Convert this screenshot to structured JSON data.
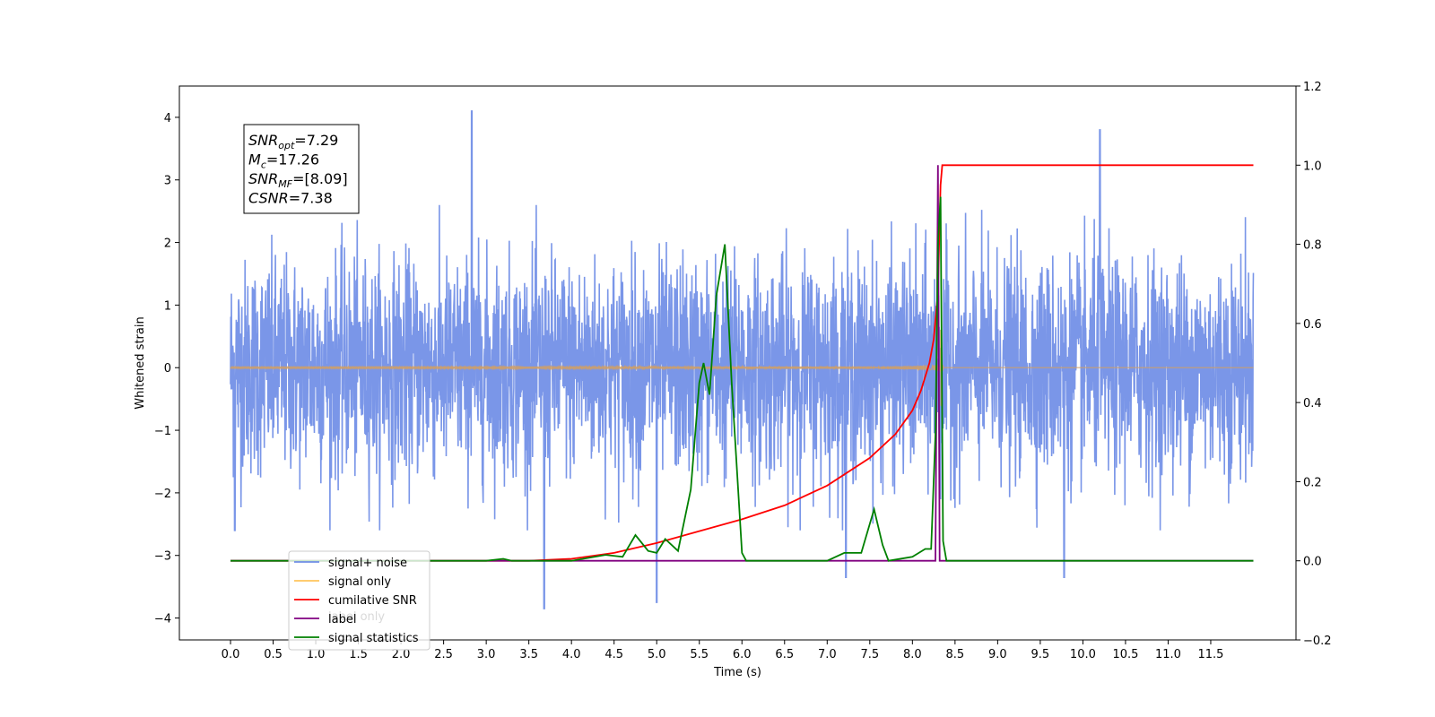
{
  "chart_data": {
    "type": "line",
    "title": "",
    "xlabel": "Time (s)",
    "ylabel": "Whitened strain",
    "xlim": [
      -0.6,
      12.5
    ],
    "ylim_left": [
      -4.35,
      4.5
    ],
    "ylim_right": [
      -0.2,
      1.2
    ],
    "x_ticks": [
      "0.0",
      "0.5",
      "1.0",
      "1.5",
      "2.0",
      "2.5",
      "3.0",
      "3.5",
      "4.0",
      "4.5",
      "5.0",
      "5.5",
      "6.0",
      "6.5",
      "7.0",
      "7.5",
      "8.0",
      "8.5",
      "9.0",
      "9.5",
      "10.0",
      "10.5",
      "11.0",
      "11.5"
    ],
    "y_ticks_left": [
      "4",
      "3",
      "2",
      "1",
      "0",
      "−1",
      "−2",
      "−3",
      "−4"
    ],
    "y_ticks_right": [
      "1.2",
      "1.0",
      "0.8",
      "0.6",
      "0.4",
      "0.2",
      "0.0",
      "−0.2"
    ],
    "grid": false,
    "legend_position": "lower-left",
    "legend": [
      {
        "label": "signal+ noise",
        "color": "#6f8de6"
      },
      {
        "label": "signal only",
        "color": "#ffc55c"
      },
      {
        "label": "cumilative SNR",
        "color": "#ff0000"
      },
      {
        "label": "label",
        "color": "#800080"
      },
      {
        "label": "signal statistics",
        "color": "#008000"
      }
    ],
    "hidden_legend_label": "label only",
    "annotation": {
      "lines": [
        {
          "var": "SNR",
          "sub": "opt",
          "value": "=7.29"
        },
        {
          "var": "M",
          "sub": "c",
          "value": "=17.26"
        },
        {
          "var": "SNR",
          "sub": "MF",
          "value": "=[8.09]"
        },
        {
          "var": "CSNR",
          "sub": "",
          "value": "=7.38"
        }
      ]
    },
    "series": [
      {
        "name": "signal+ noise",
        "axis": "left",
        "color": "#6f8de6",
        "description_points": {
          "x": [
            0.0,
            12.0
          ],
          "envelope": 1.8,
          "spikes": [
            [
              2.83,
              4.1
            ],
            [
              10.2,
              3.8
            ],
            [
              3.68,
              -3.85
            ],
            [
              5.0,
              -3.75
            ],
            [
              0.05,
              -2.6
            ],
            [
              9.78,
              -3.35
            ],
            [
              7.22,
              -3.35
            ]
          ]
        }
      },
      {
        "name": "signal only",
        "axis": "left",
        "color": "#d4a060",
        "chirp": {
          "t_merge": 8.33,
          "amp_max": 1.1
        }
      },
      {
        "name": "cumilative SNR",
        "axis": "right",
        "color": "#ff0000",
        "x": [
          0.0,
          3.5,
          4.0,
          4.5,
          5.0,
          5.5,
          6.0,
          6.5,
          7.0,
          7.5,
          7.8,
          8.0,
          8.1,
          8.2,
          8.25,
          8.3,
          8.33,
          8.35,
          12.0
        ],
        "y": [
          0.0,
          0.0,
          0.005,
          0.02,
          0.045,
          0.075,
          0.105,
          0.14,
          0.19,
          0.26,
          0.32,
          0.38,
          0.43,
          0.5,
          0.56,
          0.68,
          0.95,
          1.0,
          1.0
        ]
      },
      {
        "name": "label",
        "axis": "right",
        "color": "#800080",
        "x": [
          0.0,
          8.25,
          8.27,
          8.3,
          8.32,
          12.0
        ],
        "y": [
          0.0,
          0.0,
          0.0,
          1.0,
          0.0,
          0.0
        ]
      },
      {
        "name": "signal statistics",
        "axis": "right",
        "color": "#008000",
        "x": [
          0.0,
          3.0,
          3.2,
          3.3,
          4.0,
          4.4,
          4.6,
          4.75,
          4.9,
          5.0,
          5.1,
          5.25,
          5.4,
          5.5,
          5.55,
          5.62,
          5.7,
          5.8,
          5.88,
          6.0,
          6.05,
          6.1,
          7.0,
          7.2,
          7.4,
          7.55,
          7.65,
          7.72,
          8.0,
          8.15,
          8.22,
          8.27,
          8.3,
          8.33,
          8.36,
          8.4,
          12.0
        ],
        "y": [
          0.0,
          0.0,
          0.005,
          0.0,
          0.0,
          0.015,
          0.01,
          0.065,
          0.025,
          0.02,
          0.055,
          0.025,
          0.18,
          0.45,
          0.5,
          0.42,
          0.67,
          0.8,
          0.45,
          0.02,
          0.0,
          0.0,
          0.0,
          0.02,
          0.02,
          0.13,
          0.04,
          0.0,
          0.01,
          0.03,
          0.03,
          0.32,
          0.8,
          0.92,
          0.05,
          0.0,
          0.0
        ]
      }
    ]
  }
}
